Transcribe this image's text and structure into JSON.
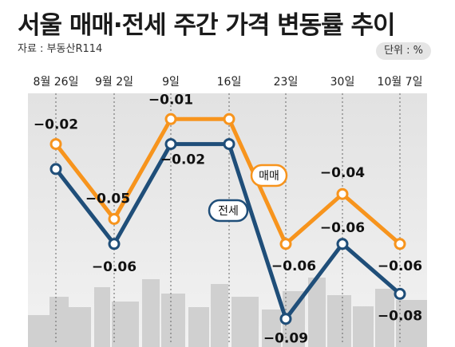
{
  "title": "서울 매매·전세 주간 가격 변동률 추이",
  "source": "자료 : 부동산R114",
  "unit": "단위 : %",
  "chart_data": {
    "type": "line",
    "categories": [
      "8월 26일",
      "9월 2일",
      "9일",
      "16일",
      "23일",
      "30일",
      "10월 7일"
    ],
    "ylim": [
      -0.1,
      0.0
    ],
    "grid": true,
    "series": [
      {
        "name": "매매",
        "color": "#f7941d",
        "values": [
          -0.02,
          -0.05,
          -0.01,
          -0.01,
          -0.06,
          -0.04,
          -0.06
        ],
        "labels": [
          "−0.02",
          "−0.05",
          "−0.01",
          "",
          "−0.06",
          "−0.04",
          "−0.06"
        ]
      },
      {
        "name": "전세",
        "color": "#1f4e79",
        "values": [
          -0.03,
          -0.06,
          -0.02,
          -0.02,
          -0.09,
          -0.06,
          -0.08
        ],
        "labels": [
          "",
          "−0.06",
          "−0.02",
          "",
          "−0.09",
          "−0.06",
          "−0.08"
        ]
      }
    ]
  }
}
